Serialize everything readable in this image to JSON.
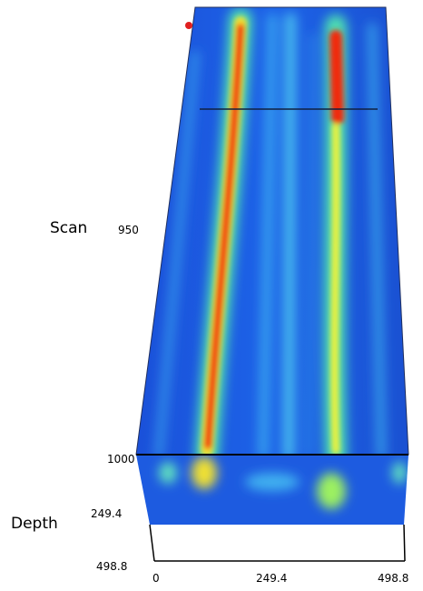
{
  "axes": {
    "scan": {
      "label": "Scan",
      "ticks": [
        "950",
        "1000"
      ]
    },
    "depth": {
      "label": "Depth",
      "ticks": [
        "249.4",
        "498.8"
      ]
    },
    "width": {
      "ticks": [
        "0",
        "249.4",
        "498.8"
      ]
    }
  }
}
